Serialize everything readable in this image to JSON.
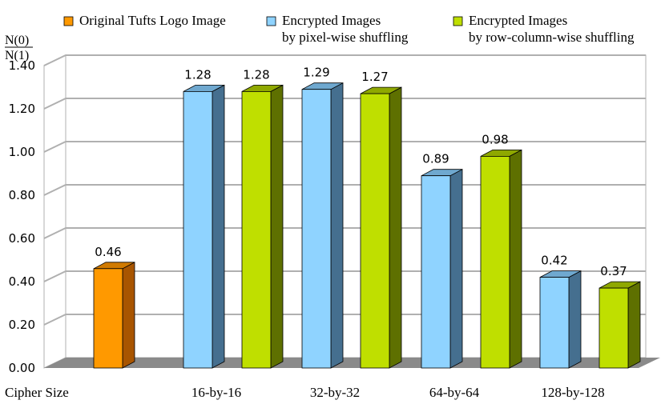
{
  "chart_data": {
    "type": "bar",
    "ylabel": {
      "numerator": "N(0)",
      "denominator": "N(1)"
    },
    "xlabel": "Cipher Size",
    "ylim": [
      0,
      1.4
    ],
    "yticks": [
      "0.00",
      "0.20",
      "0.40",
      "0.60",
      "0.80",
      "1.00",
      "1.20",
      "1.40"
    ],
    "ytick_values": [
      0,
      0.2,
      0.4,
      0.6,
      0.8,
      1.0,
      1.2,
      1.4
    ],
    "grid": true,
    "legend_position": "top",
    "style": "3d",
    "categories": [
      "",
      "16-by-16",
      "32-by-32",
      "64-by-64",
      "128-by-128"
    ],
    "series": [
      {
        "name": "Original Tufts Logo Image",
        "legend_lines": [
          "Original Tufts Logo Image"
        ],
        "color": "#FF9900",
        "side_color": "#A85500",
        "top_color": "#D07A00",
        "values": [
          0.46,
          null,
          null,
          null,
          null
        ],
        "labels": [
          "0.46",
          null,
          null,
          null,
          null
        ]
      },
      {
        "name": "Encrypted Images by pixel-wise shuffling",
        "legend_lines": [
          "Encrypted Images",
          "by pixel-wise shuffling"
        ],
        "color": "#8FD3FF",
        "side_color": "#456F8F",
        "top_color": "#6FA8CF",
        "values": [
          null,
          1.28,
          1.29,
          0.89,
          0.42
        ],
        "labels": [
          null,
          "1.28",
          "1.29",
          "0.89",
          "0.42"
        ]
      },
      {
        "name": "Encrypted Images by row-column-wise shuffling",
        "legend_lines": [
          "Encrypted Images",
          "by row-column-wise shuffling"
        ],
        "color": "#BFDF00",
        "side_color": "#5E7000",
        "top_color": "#8FA800",
        "values": [
          null,
          1.28,
          1.27,
          0.98,
          0.37
        ],
        "labels": [
          null,
          "1.28",
          "1.27",
          "0.98",
          "0.37"
        ]
      }
    ]
  }
}
